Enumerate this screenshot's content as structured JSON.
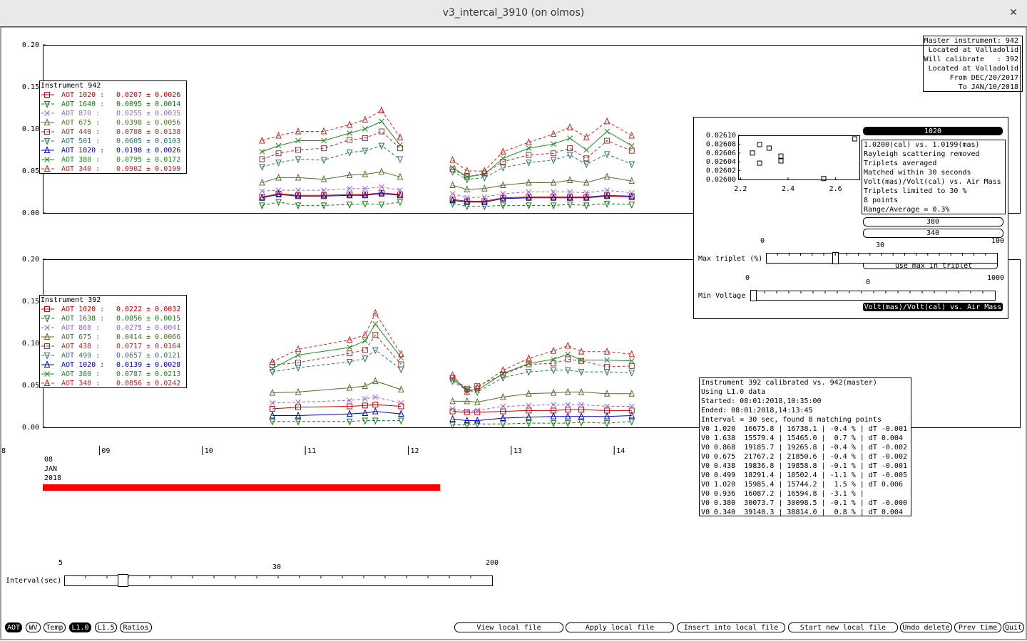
{
  "window": {
    "title": "v3_intercal_3910 (on olmos)",
    "close": "✕"
  },
  "master_info": [
    "Master instrument: 942",
    "Located at Valladolid",
    "Will calibrate   : 392",
    "Located at Valladolid",
    "From DEC/20/2017",
    "To JAN/10/2018"
  ],
  "chart_data": [
    {
      "type": "line",
      "legend_title": "Instrument 942",
      "xlim": [
        8.45,
        17.94
      ],
      "ylim": [
        0,
        0.2
      ],
      "yticks": [
        {
          "value": 0,
          "label": "0.00"
        },
        0.05,
        {
          "value": 0.1,
          "label": "0.10"
        },
        0.15,
        {
          "value": 0.2,
          "label": "0.20"
        }
      ],
      "x": [
        10.58,
        10.74,
        10.93,
        11.18,
        11.43,
        11.58,
        11.74,
        11.92,
        12.17,
        12.43,
        12.57,
        12.74,
        12.92,
        13.17,
        13.41,
        13.57,
        13.73,
        13.93,
        14.17
      ],
      "series": [
        {
          "name": "AOT 1020 :",
          "stats": "0.0207 ± 0.0026",
          "color": "#cc0000",
          "dash": false,
          "marker": "square",
          "values": [
            0.019,
            0.023,
            0.021,
            0.021,
            0.022,
            0.022,
            0.024,
            0.022,
            null,
            0.016,
            0.014,
            0.014,
            0.018,
            0.019,
            0.019,
            0.019,
            0.019,
            0.021,
            0.02
          ]
        },
        {
          "name": "AOT 1640 :",
          "stats": "0.0095 ± 0.0014",
          "color": "#117711",
          "dash": true,
          "marker": "triangle-down",
          "values": [
            0.009,
            0.013,
            0.009,
            0.009,
            0.01,
            0.011,
            0.01,
            0.013,
            null,
            0.011,
            0.008,
            0.008,
            0.009,
            0.009,
            0.009,
            0.01,
            0.009,
            0.011,
            0.01
          ]
        },
        {
          "name": "AOT 870 :",
          "stats": "0.0255 ± 0.0035",
          "color": "#9966cc",
          "dash": true,
          "marker": "x",
          "values": [
            0.026,
            0.027,
            0.027,
            0.027,
            0.029,
            0.029,
            0.031,
            0.027,
            null,
            0.023,
            0.018,
            0.019,
            0.023,
            0.025,
            0.025,
            0.025,
            0.024,
            0.027,
            0.024
          ]
        },
        {
          "name": "AOT 675 :",
          "stats": "0.0398 ± 0.0056",
          "color": "#556b2f",
          "dash": false,
          "marker": "triangle",
          "values": [
            0.036,
            0.042,
            0.042,
            0.04,
            0.045,
            0.046,
            0.049,
            0.043,
            null,
            0.033,
            0.028,
            0.029,
            0.033,
            0.036,
            0.036,
            0.039,
            0.036,
            0.043,
            0.038
          ]
        },
        {
          "name": "AOT 440 :",
          "stats": "0.0708 ± 0.0138",
          "color": "#993333",
          "dash": true,
          "marker": "square",
          "values": [
            0.064,
            0.071,
            0.075,
            0.077,
            0.087,
            0.089,
            0.097,
            0.077,
            null,
            0.052,
            0.043,
            0.047,
            0.061,
            0.069,
            0.071,
            0.077,
            0.065,
            0.086,
            0.074
          ]
        },
        {
          "name": "AOT 501 :",
          "stats": "0.0605 ± 0.0103",
          "color": "#2f6f6f",
          "dash": true,
          "marker": "triangle-down",
          "values": [
            0.055,
            0.06,
            0.064,
            0.063,
            0.072,
            0.074,
            0.08,
            0.064,
            null,
            0.049,
            0.04,
            0.042,
            0.054,
            0.06,
            0.063,
            0.069,
            0.058,
            0.07,
            0.058
          ]
        },
        {
          "name": "AOT 1020 :",
          "stats": "0.0198 ± 0.0026",
          "color": "#0000bb",
          "dash": false,
          "marker": "triangle",
          "values": [
            0.018,
            0.022,
            0.02,
            0.02,
            0.021,
            0.021,
            0.023,
            0.021,
            null,
            0.015,
            0.013,
            0.013,
            0.017,
            0.018,
            0.018,
            0.018,
            0.018,
            0.02,
            0.019
          ]
        },
        {
          "name": "AOT 380 :",
          "stats": "0.0795 ± 0.0172",
          "color": "#228b22",
          "dash": false,
          "marker": "x",
          "values": [
            0.073,
            0.08,
            0.086,
            0.086,
            0.095,
            0.1,
            0.109,
            0.081,
            null,
            0.054,
            0.043,
            0.046,
            0.065,
            0.077,
            0.082,
            0.089,
            0.075,
            0.097,
            0.08
          ]
        },
        {
          "name": "AOT 340 :",
          "stats": "0.0902 ± 0.0199",
          "color": "#cc2222",
          "dash": true,
          "marker": "triangle",
          "values": [
            0.086,
            0.092,
            0.097,
            0.097,
            0.105,
            0.111,
            0.122,
            0.09,
            null,
            0.063,
            0.05,
            0.05,
            0.073,
            0.084,
            0.094,
            0.102,
            0.09,
            0.109,
            0.092
          ]
        }
      ]
    },
    {
      "type": "line",
      "legend_title": "Instrument 392",
      "xlim": [
        8.45,
        17.94
      ],
      "ylim": [
        0,
        0.2
      ],
      "yticks": [
        {
          "value": 0,
          "label": "0.00"
        },
        0.05,
        {
          "value": 0.1,
          "label": "0.10"
        },
        0.15,
        {
          "value": 0.2,
          "label": "0.20"
        }
      ],
      "xticks": [
        {
          "value": 9,
          "label": "09"
        },
        {
          "value": 10,
          "label": "10"
        },
        {
          "value": 11,
          "label": "11"
        },
        {
          "value": 12,
          "label": "12"
        },
        {
          "value": 13,
          "label": "13"
        },
        {
          "value": 14,
          "label": "14"
        }
      ],
      "x_edge_label": "8",
      "x_start_label": [
        "08",
        "JAN",
        "2018"
      ],
      "selection": {
        "range": [
          8.45,
          12.31
        ],
        "color": "#ff0000"
      },
      "x": [
        10.68,
        10.93,
        11.43,
        11.58,
        11.68,
        11.93,
        12.18,
        12.43,
        12.57,
        12.67,
        12.92,
        13.17,
        13.41,
        13.55,
        13.68,
        13.93,
        14.17
      ],
      "series": [
        {
          "name": "AOT 1020 :",
          "stats": "0.0222 ± 0.0032",
          "color": "#cc0000",
          "dash": false,
          "marker": "square",
          "values": [
            0.022,
            0.024,
            0.025,
            0.026,
            0.027,
            0.025,
            null,
            0.019,
            0.018,
            0.018,
            0.019,
            0.02,
            0.02,
            0.021,
            0.021,
            0.02,
            0.02
          ]
        },
        {
          "name": "AOT 1638 :",
          "stats": "0.0056 ± 0.0015",
          "color": "#117711",
          "dash": true,
          "marker": "triangle-down",
          "values": [
            0.007,
            0.007,
            0.007,
            0.008,
            0.008,
            0.008,
            null,
            0.003,
            0.003,
            0.004,
            0.004,
            0.005,
            0.005,
            0.005,
            0.006,
            0.005,
            0.007
          ]
        },
        {
          "name": "AOT 868 :",
          "stats": "0.0275 ± 0.0041",
          "color": "#9966cc",
          "dash": true,
          "marker": "x",
          "values": [
            0.029,
            0.03,
            0.032,
            0.034,
            0.036,
            0.029,
            null,
            0.022,
            0.019,
            0.02,
            0.025,
            0.026,
            0.027,
            0.027,
            0.027,
            0.025,
            0.025
          ]
        },
        {
          "name": "AOT 675 :",
          "stats": "0.0414 ± 0.0066",
          "color": "#556b2f",
          "dash": false,
          "marker": "triangle",
          "values": [
            0.041,
            0.042,
            0.047,
            0.049,
            0.055,
            0.045,
            null,
            0.031,
            0.031,
            0.03,
            0.036,
            0.04,
            0.041,
            0.042,
            0.042,
            0.04,
            0.04
          ]
        },
        {
          "name": "AOT 438 :",
          "stats": "0.0717 ± 0.0164",
          "color": "#993333",
          "dash": true,
          "marker": "square",
          "values": [
            0.074,
            0.077,
            0.088,
            0.092,
            0.11,
            0.075,
            null,
            0.059,
            0.046,
            0.049,
            0.063,
            0.075,
            0.076,
            0.081,
            0.079,
            0.072,
            0.073
          ]
        },
        {
          "name": "AOT 499 :",
          "stats": "0.0657 ± 0.0121",
          "color": "#2f6f6f",
          "dash": true,
          "marker": "triangle-down",
          "values": [
            0.066,
            0.071,
            0.078,
            0.082,
            0.092,
            0.069,
            null,
            0.055,
            0.044,
            0.042,
            0.059,
            0.066,
            0.068,
            0.068,
            0.066,
            0.066,
            0.065
          ]
        },
        {
          "name": "AOT 1020 :",
          "stats": "0.0139 ± 0.0028",
          "color": "#0000bb",
          "dash": false,
          "marker": "triangle",
          "values": [
            0.014,
            0.014,
            0.016,
            0.017,
            0.019,
            0.016,
            null,
            0.01,
            0.008,
            0.008,
            0.011,
            0.012,
            0.013,
            0.013,
            0.013,
            0.013,
            0.014
          ]
        },
        {
          "name": "AOT 380 :",
          "stats": "0.0787 ± 0.0213",
          "color": "#228b22",
          "dash": false,
          "marker": "x",
          "values": [
            0.07,
            0.086,
            0.095,
            0.103,
            0.123,
            0.083,
            null,
            0.057,
            0.045,
            0.044,
            0.064,
            0.076,
            0.081,
            0.087,
            0.08,
            0.08,
            0.079
          ]
        },
        {
          "name": "AOT 340 :",
          "stats": "0.0856 ± 0.0242",
          "color": "#cc2222",
          "dash": true,
          "marker": "triangle",
          "values": [
            0.078,
            0.093,
            0.104,
            0.11,
            0.136,
            0.087,
            null,
            0.062,
            0.042,
            0.047,
            0.068,
            0.082,
            0.091,
            0.097,
            0.09,
            0.09,
            0.087
          ]
        }
      ]
    },
    {
      "type": "scatter",
      "xlim": [
        2.19,
        2.7
      ],
      "ylim": [
        0.026,
        0.0261
      ],
      "xticks": [
        2.2,
        2.4,
        2.6
      ],
      "yticks": [
        {
          "value": 0.0261,
          "label": "0.02610"
        },
        {
          "value": 0.02608,
          "label": "0.02608"
        },
        {
          "value": 0.02606,
          "label": "0.02606"
        },
        {
          "value": 0.02604,
          "label": "0.02604"
        },
        {
          "value": 0.02602,
          "label": "0.02602"
        },
        {
          "value": 0.026,
          "label": "0.02600"
        }
      ],
      "x": [
        2.28,
        2.25,
        2.32,
        2.28,
        2.37,
        2.37,
        2.55,
        2.68
      ],
      "values": [
        0.026079,
        0.02606,
        0.026071,
        0.026037,
        0.026053,
        0.026042,
        0.026002,
        0.026092
      ]
    }
  ],
  "dialog": {
    "wavelength_button": "1020",
    "notes": [
      "1.0200(cal) vs. 1.0199(mas)",
      "Rayleigh scattering removed",
      "Triplets averaged",
      "Matched within 30 seconds",
      "Volt(mas)/Volt(cal) vs. Air Mass",
      "Triplets limited to 30 %",
      "8 points",
      "Range/Average = 0.3%"
    ],
    "buttons": [
      "380",
      "340"
    ],
    "max_triplet": {
      "label": "Max triplet (%)",
      "scale": [
        "0",
        "30",
        "100"
      ],
      "option": "use max in triplet"
    },
    "min_voltage": {
      "label": "Min Voltage",
      "scale": [
        "0",
        "0",
        "1000"
      ]
    },
    "plot_button": "Volt(mas)/Volt(cal) vs. Air Mass"
  },
  "report": [
    "Instrument 392 calibrated vs. 942(master)",
    "Using L1.0 data",
    "Started: 08:01:2018,10:35:00",
    "Ended: 08:01:2018,14:13:45",
    "Interval = 30 sec, found 8 matching points",
    "V0 1.020  16675.8 | 16738.1 | -0.4 % | dT -0.001",
    "V0 1.638  15579.4 | 15465.0 |  0.7 % | dT 0.004",
    "V0 0.868  19185.7 | 19265.8 | -0.4 % | dT -0.002",
    "V0 0.675  21767.2 | 21850.6 | -0.4 % | dT -0.002",
    "V0 0.438  19836.8 | 19858.8 | -0.1 % | dT -0.001",
    "V0 0.499  18291.4 | 18502.4 | -1.1 % | dT -0.005",
    "V0 1.020  15985.4 | 15744.2 |  1.5 % | dT 0.006",
    "V0 0.936  16087.2 | 16594.8 | -3.1 % |",
    "V0 0.380  30073.7 | 30098.5 | -0.1 % | dT -0.000",
    "V0 0.340  39140.3 | 38814.0 |  0.8 % | dT 0.004"
  ],
  "interval": {
    "label": "Interval(sec)",
    "scale": [
      "5",
      "30",
      "200"
    ]
  },
  "toolbar": {
    "left": [
      "AOT",
      "WV",
      "Temp",
      "L1.0",
      "L1.5",
      "Ratios"
    ],
    "active": [
      0,
      3
    ],
    "right": [
      "View local file",
      "Apply local file",
      "Insert into local file",
      "Start new local file",
      "Undo delete",
      "Prev time",
      "Quit"
    ]
  }
}
